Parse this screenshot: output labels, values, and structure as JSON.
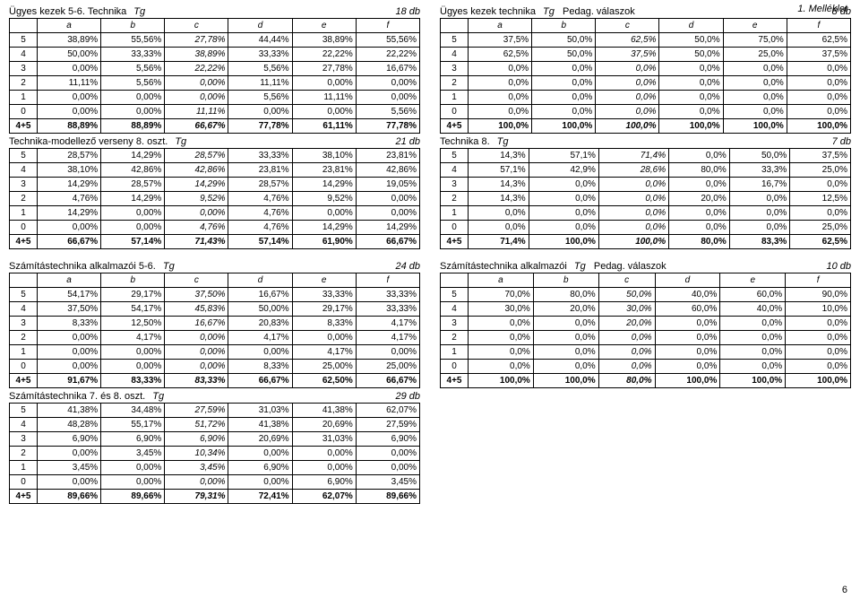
{
  "header": {
    "appendix": "1. Melléklet",
    "pagenum": "6"
  },
  "left": {
    "A": {
      "title": "Ügyes kezek 5-6. Technika",
      "mid": "Tg",
      "db": "18 db",
      "cols": [
        "",
        "a",
        "b",
        "c",
        "d",
        "e",
        "f"
      ],
      "rows": [
        [
          "5",
          "38,89%",
          "55,56%",
          "27,78%",
          "44,44%",
          "38,89%",
          "55,56%"
        ],
        [
          "4",
          "50,00%",
          "33,33%",
          "38,89%",
          "33,33%",
          "22,22%",
          "22,22%"
        ],
        [
          "3",
          "0,00%",
          "5,56%",
          "22,22%",
          "5,56%",
          "27,78%",
          "16,67%"
        ],
        [
          "2",
          "11,11%",
          "5,56%",
          "0,00%",
          "11,11%",
          "0,00%",
          "0,00%"
        ],
        [
          "1",
          "0,00%",
          "0,00%",
          "0,00%",
          "5,56%",
          "11,11%",
          "0,00%"
        ],
        [
          "0",
          "0,00%",
          "0,00%",
          "11,11%",
          "0,00%",
          "0,00%",
          "5,56%"
        ]
      ],
      "total": [
        "4+5",
        "88,89%",
        "88,89%",
        "66,67%",
        "77,78%",
        "61,11%",
        "77,78%"
      ]
    },
    "B": {
      "title": "Technika-modellező verseny 8. oszt.",
      "mid": "Tg",
      "db": "21 db",
      "cols": [
        "",
        "a",
        "b",
        "c",
        "d",
        "e",
        "f"
      ],
      "rows": [
        [
          "5",
          "28,57%",
          "14,29%",
          "28,57%",
          "33,33%",
          "38,10%",
          "23,81%"
        ],
        [
          "4",
          "38,10%",
          "42,86%",
          "42,86%",
          "23,81%",
          "23,81%",
          "42,86%"
        ],
        [
          "3",
          "14,29%",
          "28,57%",
          "14,29%",
          "28,57%",
          "14,29%",
          "19,05%"
        ],
        [
          "2",
          "4,76%",
          "14,29%",
          "9,52%",
          "4,76%",
          "9,52%",
          "0,00%"
        ],
        [
          "1",
          "14,29%",
          "0,00%",
          "0,00%",
          "4,76%",
          "0,00%",
          "0,00%"
        ],
        [
          "0",
          "0,00%",
          "0,00%",
          "4,76%",
          "4,76%",
          "14,29%",
          "14,29%"
        ]
      ],
      "total": [
        "4+5",
        "66,67%",
        "57,14%",
        "71,43%",
        "57,14%",
        "61,90%",
        "66,67%"
      ]
    },
    "C": {
      "title": "Számítástechnika alkalmazói 5-6.",
      "mid": "Tg",
      "db": "24 db",
      "cols": [
        "",
        "a",
        "b",
        "c",
        "d",
        "e",
        "f"
      ],
      "rows": [
        [
          "5",
          "54,17%",
          "29,17%",
          "37,50%",
          "16,67%",
          "33,33%",
          "33,33%"
        ],
        [
          "4",
          "37,50%",
          "54,17%",
          "45,83%",
          "50,00%",
          "29,17%",
          "33,33%"
        ],
        [
          "3",
          "8,33%",
          "12,50%",
          "16,67%",
          "20,83%",
          "8,33%",
          "4,17%"
        ],
        [
          "2",
          "0,00%",
          "4,17%",
          "0,00%",
          "4,17%",
          "0,00%",
          "4,17%"
        ],
        [
          "1",
          "0,00%",
          "0,00%",
          "0,00%",
          "0,00%",
          "4,17%",
          "0,00%"
        ],
        [
          "0",
          "0,00%",
          "0,00%",
          "0,00%",
          "8,33%",
          "25,00%",
          "25,00%"
        ]
      ],
      "total": [
        "4+5",
        "91,67%",
        "83,33%",
        "83,33%",
        "66,67%",
        "62,50%",
        "66,67%"
      ]
    },
    "D": {
      "title": "Számítástechnika 7. és 8. oszt.",
      "mid": "Tg",
      "db": "29 db",
      "cols": [
        "",
        "a",
        "b",
        "c",
        "d",
        "e",
        "f"
      ],
      "rows": [
        [
          "5",
          "41,38%",
          "34,48%",
          "27,59%",
          "31,03%",
          "41,38%",
          "62,07%"
        ],
        [
          "4",
          "48,28%",
          "55,17%",
          "51,72%",
          "41,38%",
          "20,69%",
          "27,59%"
        ],
        [
          "3",
          "6,90%",
          "6,90%",
          "6,90%",
          "20,69%",
          "31,03%",
          "6,90%"
        ],
        [
          "2",
          "0,00%",
          "3,45%",
          "10,34%",
          "0,00%",
          "0,00%",
          "0,00%"
        ],
        [
          "1",
          "3,45%",
          "0,00%",
          "3,45%",
          "6,90%",
          "0,00%",
          "0,00%"
        ],
        [
          "0",
          "0,00%",
          "0,00%",
          "0,00%",
          "0,00%",
          "6,90%",
          "3,45%"
        ]
      ],
      "total": [
        "4+5",
        "89,66%",
        "89,66%",
        "79,31%",
        "72,41%",
        "62,07%",
        "89,66%"
      ]
    }
  },
  "right": {
    "A": {
      "title": "Ügyes kezek technika",
      "mid": "Tg",
      "mid2": "Pedag. válaszok",
      "db": "8 db",
      "cols": [
        "",
        "a",
        "b",
        "c",
        "d",
        "e",
        "f"
      ],
      "rows": [
        [
          "5",
          "37,5%",
          "50,0%",
          "62,5%",
          "50,0%",
          "75,0%",
          "62,5%"
        ],
        [
          "4",
          "62,5%",
          "50,0%",
          "37,5%",
          "50,0%",
          "25,0%",
          "37,5%"
        ],
        [
          "3",
          "0,0%",
          "0,0%",
          "0,0%",
          "0,0%",
          "0,0%",
          "0,0%"
        ],
        [
          "2",
          "0,0%",
          "0,0%",
          "0,0%",
          "0,0%",
          "0,0%",
          "0,0%"
        ],
        [
          "1",
          "0,0%",
          "0,0%",
          "0,0%",
          "0,0%",
          "0,0%",
          "0,0%"
        ],
        [
          "0",
          "0,0%",
          "0,0%",
          "0,0%",
          "0,0%",
          "0,0%",
          "0,0%"
        ]
      ],
      "total": [
        "4+5",
        "100,0%",
        "100,0%",
        "100,0%",
        "100,0%",
        "100,0%",
        "100,0%"
      ]
    },
    "B": {
      "title": "Technika 8.",
      "mid": "Tg",
      "db": "7 db",
      "cols": [
        "",
        "a",
        "b",
        "c",
        "d",
        "e",
        "f"
      ],
      "rows": [
        [
          "5",
          "14,3%",
          "57,1%",
          "71,4%",
          "0,0%",
          "50,0%",
          "37,5%"
        ],
        [
          "4",
          "57,1%",
          "42,9%",
          "28,6%",
          "80,0%",
          "33,3%",
          "25,0%"
        ],
        [
          "3",
          "14,3%",
          "0,0%",
          "0,0%",
          "0,0%",
          "16,7%",
          "0,0%"
        ],
        [
          "2",
          "14,3%",
          "0,0%",
          "0,0%",
          "20,0%",
          "0,0%",
          "12,5%"
        ],
        [
          "1",
          "0,0%",
          "0,0%",
          "0,0%",
          "0,0%",
          "0,0%",
          "0,0%"
        ],
        [
          "0",
          "0,0%",
          "0,0%",
          "0,0%",
          "0,0%",
          "0,0%",
          "25,0%"
        ]
      ],
      "total": [
        "4+5",
        "71,4%",
        "100,0%",
        "100,0%",
        "80,0%",
        "83,3%",
        "62,5%"
      ]
    },
    "C": {
      "title": "Számítástechnika alkalmazói",
      "mid": "Tg",
      "mid2": "Pedag. válaszok",
      "db": "10 db",
      "cols": [
        "",
        "a",
        "b",
        "c",
        "d",
        "e",
        "f"
      ],
      "rows": [
        [
          "5",
          "70,0%",
          "80,0%",
          "50,0%",
          "40,0%",
          "60,0%",
          "90,0%"
        ],
        [
          "4",
          "30,0%",
          "20,0%",
          "30,0%",
          "60,0%",
          "40,0%",
          "10,0%"
        ],
        [
          "3",
          "0,0%",
          "0,0%",
          "20,0%",
          "0,0%",
          "0,0%",
          "0,0%"
        ],
        [
          "2",
          "0,0%",
          "0,0%",
          "0,0%",
          "0,0%",
          "0,0%",
          "0,0%"
        ],
        [
          "1",
          "0,0%",
          "0,0%",
          "0,0%",
          "0,0%",
          "0,0%",
          "0,0%"
        ],
        [
          "0",
          "0,0%",
          "0,0%",
          "0,0%",
          "0,0%",
          "0,0%",
          "0,0%"
        ]
      ],
      "total": [
        "4+5",
        "100,0%",
        "100,0%",
        "80,0%",
        "100,0%",
        "100,0%",
        "100,0%"
      ]
    }
  }
}
